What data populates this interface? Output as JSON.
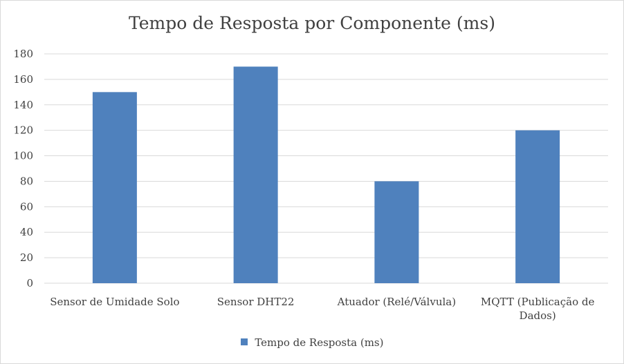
{
  "chart_data": {
    "type": "bar",
    "title": "Tempo de Resposta por Componente (ms)",
    "categories": [
      "Sensor de Umidade Solo",
      "Sensor DHT22",
      "Atuador (Relé/Válvula)",
      "MQTT (Publicação de Dados)"
    ],
    "category_lines": [
      [
        "Sensor de Umidade Solo"
      ],
      [
        "Sensor DHT22"
      ],
      [
        "Atuador (Relé/Válvula)"
      ],
      [
        "MQTT (Publicação de",
        "Dados)"
      ]
    ],
    "series": [
      {
        "name": "Tempo de Resposta (ms)",
        "values": [
          150,
          170,
          80,
          120
        ],
        "color": "#4f81bd"
      }
    ],
    "ylim": [
      0,
      180
    ],
    "yticks": [
      0,
      20,
      40,
      60,
      80,
      100,
      120,
      140,
      160,
      180
    ],
    "grid": true,
    "legend_position": "bottom"
  }
}
